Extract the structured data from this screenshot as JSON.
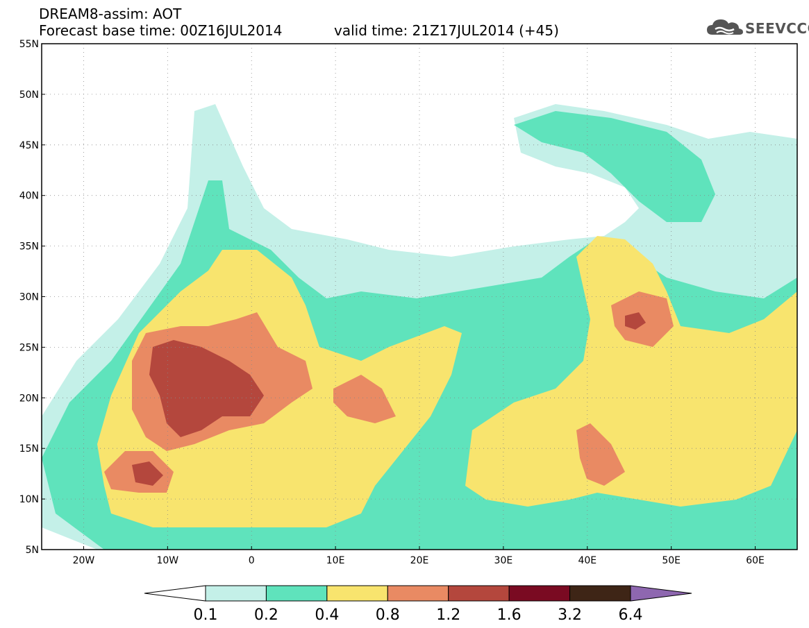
{
  "header": {
    "title": "DREAM8-assim: AOT",
    "base_time": "Forecast base time: 00Z16JUL2014",
    "valid_time": "valid time: 21Z17JUL2014 (+45)"
  },
  "logo": {
    "text": "SEEVCCC",
    "icon": "cloud-icon"
  },
  "map": {
    "lat_labels": [
      "55N",
      "50N",
      "45N",
      "40N",
      "35N",
      "30N",
      "25N",
      "20N",
      "15N",
      "10N",
      "5N"
    ],
    "lon_labels": [
      "20W",
      "10W",
      "0",
      "10E",
      "20E",
      "30E",
      "40E",
      "50E",
      "60E"
    ],
    "lat_range": [
      5,
      55
    ],
    "lon_range": [
      -25,
      65
    ]
  },
  "colorbar": {
    "thresholds": [
      "0.1",
      "0.2",
      "0.4",
      "0.8",
      "1.2",
      "1.6",
      "3.2",
      "6.4"
    ],
    "colors": [
      "#ffffff",
      "#c4f0e8",
      "#5fe3bc",
      "#f8e46e",
      "#e98a63",
      "#b4473d",
      "#7a0a22",
      "#3e2516",
      "#8e67b0"
    ]
  }
}
